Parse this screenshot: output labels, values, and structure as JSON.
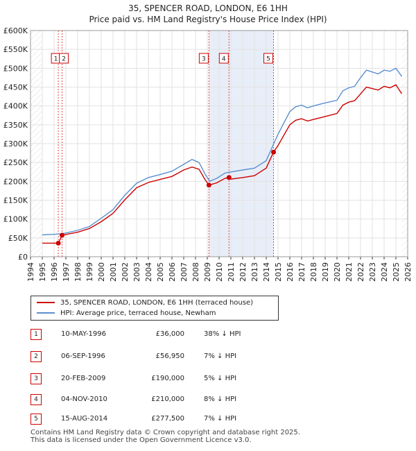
{
  "title_line1": "35, SPENCER ROAD, LONDON, E6 1HH",
  "title_line2": "Price paid vs. HM Land Registry's House Price Index (HPI)",
  "chart_data": {
    "type": "line",
    "xlim": [
      1994,
      2026
    ],
    "ylim": [
      0,
      600000
    ],
    "x_ticks": [
      1994,
      1995,
      1996,
      1997,
      1998,
      1999,
      2000,
      2001,
      2002,
      2003,
      2004,
      2005,
      2006,
      2007,
      2008,
      2009,
      2010,
      2011,
      2012,
      2013,
      2014,
      2015,
      2016,
      2017,
      2018,
      2019,
      2020,
      2021,
      2022,
      2023,
      2024,
      2025,
      2026
    ],
    "y_ticks": [
      {
        "value": 0,
        "label": "£0"
      },
      {
        "value": 50000,
        "label": "£50K"
      },
      {
        "value": 100000,
        "label": "£100K"
      },
      {
        "value": 150000,
        "label": "£150K"
      },
      {
        "value": 200000,
        "label": "£200K"
      },
      {
        "value": 250000,
        "label": "£250K"
      },
      {
        "value": 300000,
        "label": "£300K"
      },
      {
        "value": 350000,
        "label": "£350K"
      },
      {
        "value": 400000,
        "label": "£400K"
      },
      {
        "value": 450000,
        "label": "£450K"
      },
      {
        "value": 500000,
        "label": "£500K"
      },
      {
        "value": 550000,
        "label": "£550K"
      },
      {
        "value": 600000,
        "label": "£600K"
      }
    ],
    "data_start": 1995.0,
    "data_end": 2025.5,
    "series": [
      {
        "name": "HPI: Average price, terraced house, Newham",
        "color": "#5b8fd0",
        "points": [
          [
            1995.0,
            58000
          ],
          [
            1996.0,
            59500
          ],
          [
            1996.5,
            60500
          ],
          [
            1997.0,
            63000
          ],
          [
            1998.0,
            70000
          ],
          [
            1999.0,
            80000
          ],
          [
            2000.0,
            102000
          ],
          [
            2001.0,
            125000
          ],
          [
            2002.0,
            163000
          ],
          [
            2003.0,
            195000
          ],
          [
            2004.0,
            210000
          ],
          [
            2005.0,
            218000
          ],
          [
            2006.0,
            227000
          ],
          [
            2007.0,
            245000
          ],
          [
            2007.7,
            258000
          ],
          [
            2008.3,
            250000
          ],
          [
            2008.8,
            220000
          ],
          [
            2009.2,
            200000
          ],
          [
            2009.8,
            208000
          ],
          [
            2010.5,
            222000
          ],
          [
            2011.0,
            225000
          ],
          [
            2012.0,
            230000
          ],
          [
            2013.0,
            235000
          ],
          [
            2014.0,
            255000
          ],
          [
            2014.5,
            290000
          ],
          [
            2015.0,
            325000
          ],
          [
            2016.0,
            385000
          ],
          [
            2016.5,
            398000
          ],
          [
            2017.0,
            402000
          ],
          [
            2017.5,
            395000
          ],
          [
            2018.0,
            400000
          ],
          [
            2019.0,
            408000
          ],
          [
            2020.0,
            415000
          ],
          [
            2020.5,
            440000
          ],
          [
            2021.0,
            448000
          ],
          [
            2021.5,
            452000
          ],
          [
            2022.0,
            475000
          ],
          [
            2022.5,
            495000
          ],
          [
            2023.0,
            490000
          ],
          [
            2023.5,
            485000
          ],
          [
            2024.0,
            495000
          ],
          [
            2024.5,
            492000
          ],
          [
            2025.0,
            500000
          ],
          [
            2025.5,
            478000
          ]
        ]
      },
      {
        "name": "35, SPENCER ROAD, LONDON, E6 1HH (terraced house)",
        "color": "#cc0000",
        "points": [
          [
            1995.0,
            36000
          ],
          [
            1996.0,
            36000
          ],
          [
            1996.36,
            36000
          ],
          [
            1996.68,
            56950
          ],
          [
            1997.0,
            59000
          ],
          [
            1998.0,
            65000
          ],
          [
            1999.0,
            75000
          ],
          [
            2000.0,
            93000
          ],
          [
            2001.0,
            115000
          ],
          [
            2002.0,
            151000
          ],
          [
            2003.0,
            183000
          ],
          [
            2004.0,
            197000
          ],
          [
            2005.0,
            205000
          ],
          [
            2006.0,
            213000
          ],
          [
            2007.0,
            230000
          ],
          [
            2007.7,
            238000
          ],
          [
            2008.3,
            232000
          ],
          [
            2008.8,
            205000
          ],
          [
            2009.14,
            190000
          ],
          [
            2009.8,
            196000
          ],
          [
            2010.5,
            208000
          ],
          [
            2010.84,
            210000
          ],
          [
            2011.0,
            206000
          ],
          [
            2012.0,
            210000
          ],
          [
            2013.0,
            215000
          ],
          [
            2014.0,
            235000
          ],
          [
            2014.62,
            277500
          ],
          [
            2015.0,
            295000
          ],
          [
            2016.0,
            350000
          ],
          [
            2016.5,
            362000
          ],
          [
            2017.0,
            366000
          ],
          [
            2017.5,
            360000
          ],
          [
            2018.0,
            364000
          ],
          [
            2019.0,
            372000
          ],
          [
            2020.0,
            380000
          ],
          [
            2020.5,
            402000
          ],
          [
            2021.0,
            410000
          ],
          [
            2021.5,
            414000
          ],
          [
            2022.0,
            432000
          ],
          [
            2022.5,
            450000
          ],
          [
            2023.0,
            446000
          ],
          [
            2023.5,
            442000
          ],
          [
            2024.0,
            452000
          ],
          [
            2024.5,
            448000
          ],
          [
            2025.0,
            456000
          ],
          [
            2025.5,
            432000
          ]
        ]
      }
    ],
    "sales": [
      {
        "num": "1",
        "x": 1996.36,
        "price": 36000
      },
      {
        "num": "2",
        "x": 1996.68,
        "price": 56950
      },
      {
        "num": "3",
        "x": 2009.14,
        "price": 190000
      },
      {
        "num": "4",
        "x": 2010.84,
        "price": 210000
      },
      {
        "num": "5",
        "x": 2014.62,
        "price": 277500
      }
    ]
  },
  "legend": {
    "red_label": "35, SPENCER ROAD, LONDON, E6 1HH (terraced house)",
    "blue_label": "HPI: Average price, terraced house, Newham"
  },
  "table": [
    {
      "num": "1",
      "date": "10-MAY-1996",
      "price": "£36,000",
      "diff": "38% ↓ HPI"
    },
    {
      "num": "2",
      "date": "06-SEP-1996",
      "price": "£56,950",
      "diff": "7% ↓ HPI"
    },
    {
      "num": "3",
      "date": "20-FEB-2009",
      "price": "£190,000",
      "diff": "5% ↓ HPI"
    },
    {
      "num": "4",
      "date": "04-NOV-2010",
      "price": "£210,000",
      "diff": "8% ↓ HPI"
    },
    {
      "num": "5",
      "date": "15-AUG-2014",
      "price": "£277,500",
      "diff": "7% ↓ HPI"
    }
  ],
  "footer_line1": "Contains HM Land Registry data © Crown copyright and database right 2025.",
  "footer_line2": "This data is licensed under the Open Government Licence v3.0."
}
